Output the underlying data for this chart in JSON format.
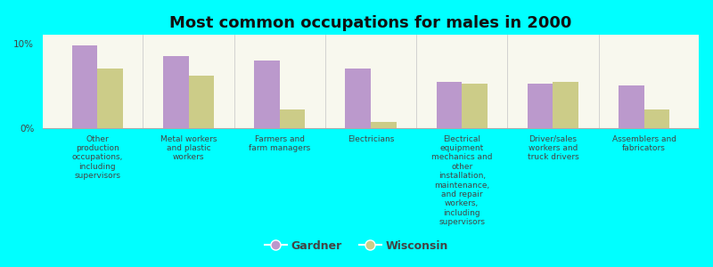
{
  "title": "Most common occupations for males in 2000",
  "categories": [
    "Other\nproduction\noccupations,\nincluding\nsupervisors",
    "Metal workers\nand plastic\nworkers",
    "Farmers and\nfarm managers",
    "Electricians",
    "Electrical\nequipment\nmechanics and\nother\ninstallation,\nmaintenance,\nand repair\nworkers,\nincluding\nsupervisors",
    "Driver/sales\nworkers and\ntruck drivers",
    "Assemblers and\nfabricators"
  ],
  "gardner_values": [
    9.7,
    8.5,
    8.0,
    7.0,
    5.5,
    5.2,
    5.0
  ],
  "wisconsin_values": [
    7.0,
    6.2,
    2.2,
    0.7,
    5.2,
    5.5,
    2.2
  ],
  "gardner_color": "#bb99cc",
  "wisconsin_color": "#cccc88",
  "background_color": "#00ffff",
  "plot_bg_top": "#f8f8ee",
  "plot_bg_bottom": "#e8eedc",
  "ylim": [
    0,
    11
  ],
  "bar_width": 0.28,
  "title_fontsize": 13,
  "legend_labels": [
    "Gardner",
    "Wisconsin"
  ],
  "tick_label_fontsize": 6.5,
  "legend_fontsize": 9
}
